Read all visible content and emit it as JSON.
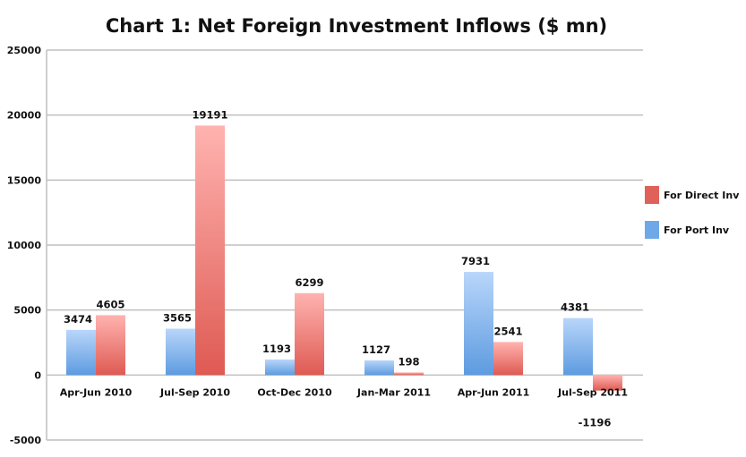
{
  "chart_data": {
    "type": "bar",
    "title": "Chart 1: Net Foreign Investment Inflows ($ mn)",
    "xlabel": "",
    "ylabel": "",
    "ylim": [
      -5000,
      25000
    ],
    "yticks": [
      -5000,
      0,
      5000,
      10000,
      15000,
      20000,
      25000
    ],
    "grid": true,
    "legend_position": "right",
    "categories": [
      "Apr-Jun 2010",
      "Jul-Sep 2010",
      "Oct-Dec 2010",
      "Jan-Mar 2011",
      "Apr-Jun 2011",
      "Jul-Sep 2011"
    ],
    "series": [
      {
        "name": "For Port Inv",
        "values": [
          3474,
          3565,
          1193,
          1127,
          7931,
          4381
        ],
        "color": "#6fa8e8"
      },
      {
        "name": "For Direct Inv",
        "values": [
          4605,
          19191,
          6299,
          198,
          2541,
          -1196
        ],
        "color": "#e0605a"
      }
    ],
    "legend_order": [
      "For Direct Inv",
      "For Port Inv"
    ]
  }
}
